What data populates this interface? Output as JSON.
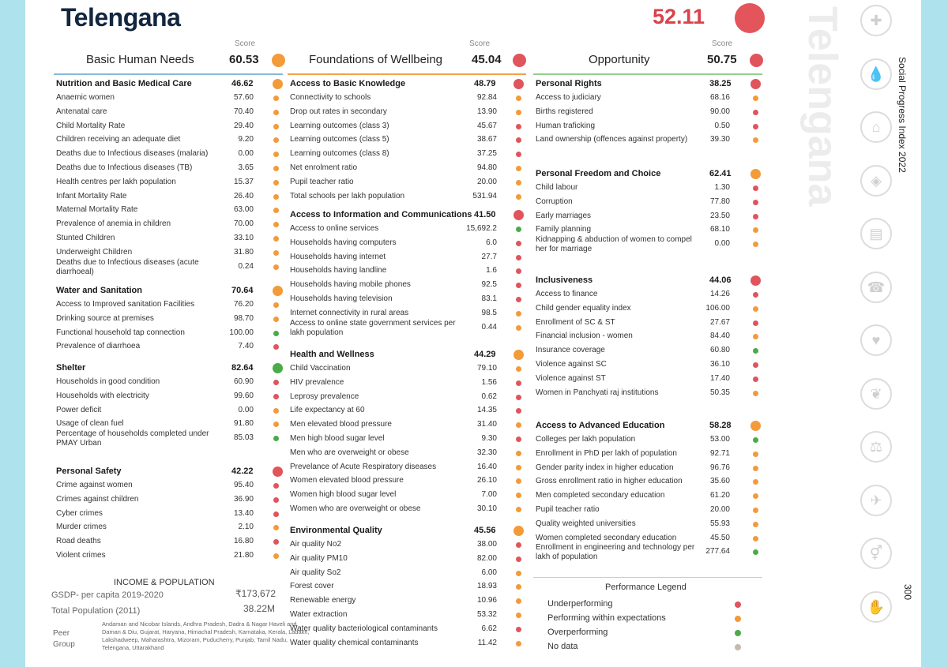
{
  "state": "Telengana",
  "overall_score": "52.11",
  "watermark": "Telengana",
  "side_label": "Social Progress Index 2022",
  "page_number": "300",
  "score_caption": "Score",
  "colors": {
    "under": "#e0545c",
    "within": "#f39a39",
    "over": "#4aab48",
    "nodata": "#c6b9ad"
  },
  "dimensions": [
    {
      "name": "Basic Human Needs",
      "score": "60.53",
      "status": "within",
      "rule_color": "#86bbd8",
      "components": [
        {
          "name": "Nutrition and Basic Medical Care",
          "score": "46.62",
          "status": "within",
          "indicators": [
            {
              "name": "Anaemic women",
              "value": "57.60",
              "status": "within"
            },
            {
              "name": "Antenatal care",
              "value": "70.40",
              "status": "within"
            },
            {
              "name": "Child Mortality Rate",
              "value": "29.40",
              "status": "within"
            },
            {
              "name": "Children receiving an adequate diet",
              "value": "9.20",
              "status": "within"
            },
            {
              "name": "Deaths due to Infectious diseases (malaria)",
              "value": "0.00",
              "status": "within"
            },
            {
              "name": "Deaths due to Infectious diseases (TB)",
              "value": "3.65",
              "status": "within"
            },
            {
              "name": "Health centres per lakh population",
              "value": "15.37",
              "status": "within"
            },
            {
              "name": "Infant Mortality Rate",
              "value": "26.40",
              "status": "within"
            },
            {
              "name": "Maternal Mortality Rate",
              "value": "63.00",
              "status": "within"
            },
            {
              "name": "Prevalence of anemia in children",
              "value": "70.00",
              "status": "within"
            },
            {
              "name": "Stunted Children",
              "value": "33.10",
              "status": "within"
            },
            {
              "name": "Underweight Children",
              "value": "31.80",
              "status": "within"
            },
            {
              "name": "Deaths due to Infectious diseases (acute diarrhoeal)",
              "value": "0.24",
              "status": "within",
              "two": true
            }
          ]
        },
        {
          "name": "Water and Sanitation",
          "score": "70.64",
          "status": "within",
          "indicators": [
            {
              "name": "Access to Improved sanitation Facilities",
              "value": "76.20",
              "status": "within"
            },
            {
              "name": "Drinking source at premises",
              "value": "98.70",
              "status": "within"
            },
            {
              "name": "Functional household tap connection",
              "value": "100.00",
              "status": "over"
            },
            {
              "name": "Prevalence of diarrhoea",
              "value": "7.40",
              "status": "under"
            }
          ]
        },
        {
          "name": "Shelter",
          "score": "82.64",
          "status": "over",
          "indicators": [
            {
              "name": "Households in good condition",
              "value": "60.90",
              "status": "under"
            },
            {
              "name": "Households with electricity",
              "value": "99.60",
              "status": "under"
            },
            {
              "name": "Power deficit",
              "value": "0.00",
              "status": "within"
            },
            {
              "name": "Usage of clean fuel",
              "value": "91.80",
              "status": "within"
            },
            {
              "name": "Percentage of households completed under PMAY Urban",
              "value": "85.03",
              "status": "over",
              "two": true
            }
          ]
        },
        {
          "name": "Personal Safety",
          "score": "42.22",
          "status": "under",
          "indicators": [
            {
              "name": "Crime against women",
              "value": "95.40",
              "status": "under"
            },
            {
              "name": "Crimes against children",
              "value": "36.90",
              "status": "under"
            },
            {
              "name": "Cyber crimes",
              "value": "13.40",
              "status": "under"
            },
            {
              "name": "Murder crimes",
              "value": "2.10",
              "status": "within"
            },
            {
              "name": "Road deaths",
              "value": "16.80",
              "status": "under"
            },
            {
              "name": "Violent crimes",
              "value": "21.80",
              "status": "within"
            }
          ]
        }
      ]
    },
    {
      "name": "Foundations of Wellbeing",
      "score": "45.04",
      "status": "under",
      "rule_color": "#f4a24a",
      "components": [
        {
          "name": "Access to Basic Knowledge",
          "score": "48.79",
          "status": "under",
          "indicators": [
            {
              "name": "Connectivity to schools",
              "value": "92.84",
              "status": "within"
            },
            {
              "name": "Drop out rates in secondary",
              "value": "13.90",
              "status": "within"
            },
            {
              "name": "Learning outcomes (class 3)",
              "value": "45.67",
              "status": "under"
            },
            {
              "name": "Learning outcomes (class 5)",
              "value": "38.67",
              "status": "under"
            },
            {
              "name": "Learning outcomes (class 8)",
              "value": "37.25",
              "status": "under"
            },
            {
              "name": "Net enrolment ratio",
              "value": "94.80",
              "status": "within"
            },
            {
              "name": "Pupil teacher ratio",
              "value": "20.00",
              "status": "within"
            },
            {
              "name": "Total schools per lakh population",
              "value": "531.94",
              "status": "within"
            }
          ]
        },
        {
          "name": "Access to Information and Communications",
          "score": "41.50",
          "status": "under",
          "indicators": [
            {
              "name": "Access to online services",
              "value": "15,692.2",
              "status": "over"
            },
            {
              "name": "Households having computers",
              "value": "6.0",
              "status": "under"
            },
            {
              "name": "Households having internet",
              "value": "27.7",
              "status": "under"
            },
            {
              "name": "Households having landline",
              "value": "1.6",
              "status": "under"
            },
            {
              "name": "Households having mobile phones",
              "value": "92.5",
              "status": "under"
            },
            {
              "name": "Households having television",
              "value": "83.1",
              "status": "under"
            },
            {
              "name": "Internet connectivity in rural areas",
              "value": "98.5",
              "status": "within"
            },
            {
              "name": "Access to online state government services per lakh population",
              "value": "0.44",
              "status": "within",
              "two": true
            }
          ]
        },
        {
          "name": "Health and Wellness",
          "score": "44.29",
          "status": "within",
          "indicators": [
            {
              "name": "Child Vaccination",
              "value": "79.10",
              "status": "within"
            },
            {
              "name": "HIV prevalence",
              "value": "1.56",
              "status": "under"
            },
            {
              "name": "Leprosy prevalence",
              "value": "0.62",
              "status": "under"
            },
            {
              "name": "Life expectancy at 60",
              "value": "14.35",
              "status": "under"
            },
            {
              "name": "Men elevated blood pressure",
              "value": "31.40",
              "status": "within"
            },
            {
              "name": "Men high blood sugar level",
              "value": "9.30",
              "status": "under"
            },
            {
              "name": "Men who are overweight or obese",
              "value": "32.30",
              "status": "within"
            },
            {
              "name": "Prevelance of Acute Respiratory diseases",
              "value": "16.40",
              "status": "within"
            },
            {
              "name": "Women elevated blood pressure",
              "value": "26.10",
              "status": "within"
            },
            {
              "name": "Women  high  blood sugar level",
              "value": "7.00",
              "status": "within"
            },
            {
              "name": "Women who are overweight or obese",
              "value": "30.10",
              "status": "within"
            }
          ]
        },
        {
          "name": "Environmental Quality",
          "score": "45.56",
          "status": "within",
          "indicators": [
            {
              "name": "Air quality No2",
              "value": "38.00",
              "status": "under"
            },
            {
              "name": "Air quality PM10",
              "value": "82.00",
              "status": "under"
            },
            {
              "name": "Air quality So2",
              "value": "6.00",
              "status": "within"
            },
            {
              "name": "Forest cover",
              "value": "18.93",
              "status": "within"
            },
            {
              "name": "Renewable energy",
              "value": "10.96",
              "status": "within"
            },
            {
              "name": "Water extraction",
              "value": "53.32",
              "status": "within"
            },
            {
              "name": "Water quality bacteriological contaminants",
              "value": "6.62",
              "status": "under"
            },
            {
              "name": "Water quality chemical contaminants",
              "value": "11.42",
              "status": "within"
            }
          ]
        }
      ]
    },
    {
      "name": "Opportunity",
      "score": "50.75",
      "status": "under",
      "rule_color": "#93cf8d",
      "components": [
        {
          "name": "Personal Rights",
          "score": "38.25",
          "status": "under",
          "indicators": [
            {
              "name": "Access to judiciary",
              "value": "68.16",
              "status": "within"
            },
            {
              "name": "Births registered",
              "value": "90.00",
              "status": "under"
            },
            {
              "name": "Human traficking",
              "value": "0.50",
              "status": "under"
            },
            {
              "name": "Land ownership (offences against property)",
              "value": "39.30",
              "status": "within"
            }
          ]
        },
        {
          "name": "Personal Freedom and Choice",
          "score": "62.41",
          "status": "within",
          "indicators": [
            {
              "name": "Child labour",
              "value": "1.30",
              "status": "under"
            },
            {
              "name": "Corruption",
              "value": "77.80",
              "status": "under"
            },
            {
              "name": "Early marriages",
              "value": "23.50",
              "status": "under"
            },
            {
              "name": "Family planning",
              "value": "68.10",
              "status": "within"
            },
            {
              "name": "Kidnapping & abduction of women to compel her for marriage",
              "value": "0.00",
              "status": "within",
              "two": true
            }
          ]
        },
        {
          "name": "Inclusiveness",
          "score": "44.06",
          "status": "under",
          "indicators": [
            {
              "name": "Access to finance",
              "value": "14.26",
              "status": "under"
            },
            {
              "name": "Child gender equality index",
              "value": "106.00",
              "status": "within"
            },
            {
              "name": "Enrollment of SC & ST",
              "value": "27.67",
              "status": "under"
            },
            {
              "name": "Financial inclusion - women",
              "value": "84.40",
              "status": "within"
            },
            {
              "name": "Insurance coverage",
              "value": "60.80",
              "status": "over"
            },
            {
              "name": "Violence against SC",
              "value": "36.10",
              "status": "under"
            },
            {
              "name": "Violence against ST",
              "value": "17.40",
              "status": "under"
            },
            {
              "name": "Women in Panchyati raj institutions",
              "value": "50.35",
              "status": "within"
            }
          ]
        },
        {
          "name": "Access to Advanced Education",
          "score": "58.28",
          "status": "within",
          "indicators": [
            {
              "name": "Colleges per lakh population",
              "value": "53.00",
              "status": "over"
            },
            {
              "name": "Enrollment in PhD per lakh of population",
              "value": "92.71",
              "status": "within"
            },
            {
              "name": "Gender parity index in higher education",
              "value": "96.76",
              "status": "within"
            },
            {
              "name": "Gross enrollment ratio in higher education",
              "value": "35.60",
              "status": "within"
            },
            {
              "name": "Men completed secondary education",
              "value": "61.20",
              "status": "within"
            },
            {
              "name": "Pupil teacher ratio",
              "value": "20.00",
              "status": "within"
            },
            {
              "name": "Quality weighted universities",
              "value": "55.93",
              "status": "within"
            },
            {
              "name": "Women completed secondary education",
              "value": "45.50",
              "status": "within"
            },
            {
              "name": "Enrollment in engineering and technology per lakh of population",
              "value": "277.64",
              "status": "over",
              "two": true
            }
          ]
        }
      ]
    }
  ],
  "income": {
    "title": "INCOME & POPULATION",
    "gsdp_label": "GSDP- per capita 2019-2020",
    "gsdp_value": "₹173,672",
    "pop_label": "Total Population (2011)",
    "pop_value": "38.22M",
    "peer_label": "Peer Group",
    "peer_list": "Andaman and Nicobar Islands, Andhra Pradesh, Dadra & Nagar Haveli and Daman & Diu, Gujarat, Haryana, Himachal Pradesh, Karnataka, Kerala, Ladakh, Lakshadweep, Maharashtra, Mizoram, Puducherry, Punjab, Tamil Nadu, Telengana, Uttarakhand"
  },
  "legend": {
    "title": "Performance Legend",
    "items": [
      {
        "label": "Underperforming",
        "status": "under"
      },
      {
        "label": "Performing within expectations",
        "status": "within"
      },
      {
        "label": "Overperforming",
        "status": "over"
      },
      {
        "label": "No data",
        "status": "nodata"
      }
    ]
  },
  "sidebar_icons": [
    "plus-icon",
    "droplet-icon",
    "house-icon",
    "shield-icon",
    "book-icon",
    "phone-icon",
    "heart-icon",
    "leaf-icon",
    "scales-icon",
    "dove-icon",
    "gender-icon",
    "hand-icon"
  ]
}
